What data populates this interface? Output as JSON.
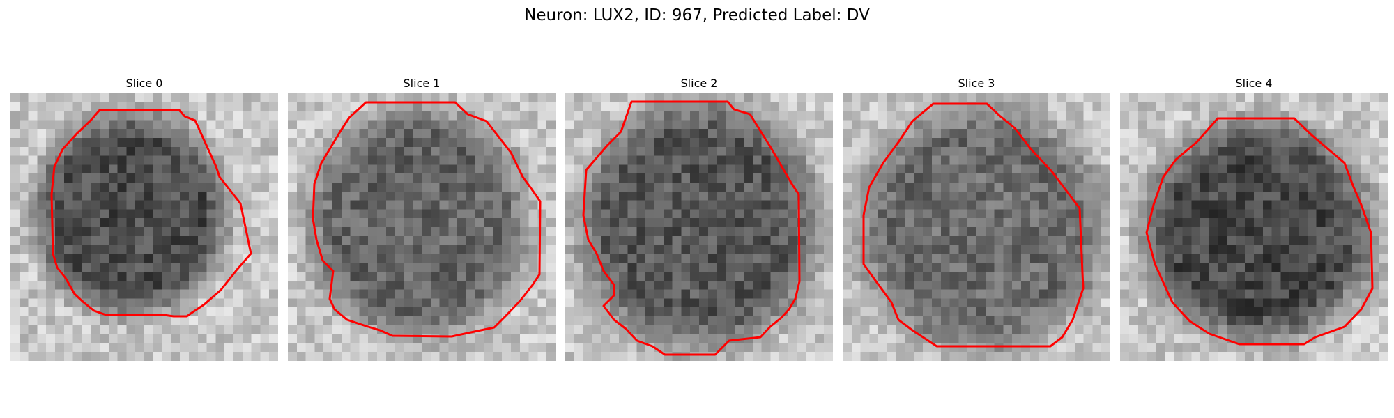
{
  "figure": {
    "title": "Neuron: LUX2, ID: 967, Predicted Label: DV",
    "contour_color": "#ff0000",
    "colormap": "grayscale"
  },
  "slices": [
    {
      "label": "Slice 0"
    },
    {
      "label": "Slice 1"
    },
    {
      "label": "Slice 2"
    },
    {
      "label": "Slice 3"
    },
    {
      "label": "Slice 4"
    }
  ]
}
